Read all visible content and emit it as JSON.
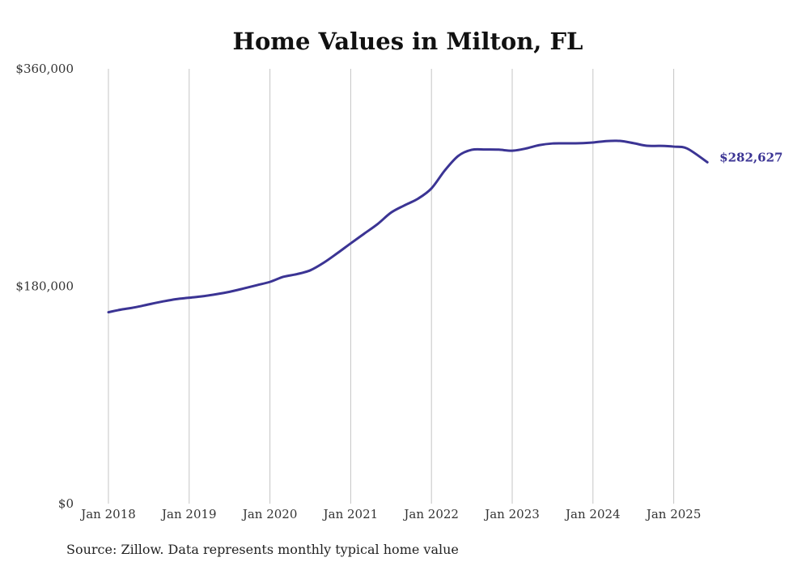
{
  "chart_data": {
    "type": "line",
    "title": "Home Values in Milton, FL",
    "xlabel": "",
    "ylabel": "",
    "ylim": [
      0,
      360000
    ],
    "y_ticks": [
      "$0",
      "$180,000",
      "$360,000"
    ],
    "y_tick_values": [
      0,
      180000,
      360000
    ],
    "x_ticks": [
      "Jan 2018",
      "Jan 2019",
      "Jan 2020",
      "Jan 2021",
      "Jan 2022",
      "Jan 2023",
      "Jan 2024",
      "Jan 2025"
    ],
    "x_tick_values": [
      "2018-01",
      "2019-01",
      "2020-01",
      "2021-01",
      "2022-01",
      "2023-01",
      "2024-01",
      "2025-01"
    ],
    "xlim": [
      "2018-01",
      "2025-06"
    ],
    "grid": "vertical",
    "legend": "none",
    "end_label": "$282,627",
    "color": "#3b3494",
    "series": [
      {
        "x": [
          "2018-01",
          "2018-03",
          "2018-05",
          "2018-07",
          "2018-09",
          "2018-11",
          "2019-01",
          "2019-03",
          "2019-05",
          "2019-07",
          "2019-09",
          "2019-11",
          "2020-01",
          "2020-03",
          "2020-05",
          "2020-07",
          "2020-09",
          "2020-11",
          "2021-01",
          "2021-03",
          "2021-05",
          "2021-07",
          "2021-09",
          "2021-11",
          "2022-01",
          "2022-03",
          "2022-05",
          "2022-07",
          "2022-09",
          "2022-11",
          "2023-01",
          "2023-03",
          "2023-05",
          "2023-07",
          "2023-09",
          "2023-11",
          "2024-01",
          "2024-03",
          "2024-05",
          "2024-07",
          "2024-09",
          "2024-11",
          "2025-01",
          "2025-03",
          "2025-06"
        ],
        "values": [
          158500,
          160800,
          162600,
          165000,
          167300,
          169300,
          170500,
          171700,
          173400,
          175400,
          178000,
          180800,
          183600,
          187800,
          190000,
          193200,
          199500,
          207300,
          215500,
          223500,
          231500,
          241000,
          247000,
          252500,
          261000,
          276000,
          288000,
          293000,
          293200,
          293100,
          292200,
          294000,
          296800,
          298200,
          298300,
          298400,
          299000,
          300200,
          300300,
          298500,
          296300,
          296200,
          295600,
          294000,
          282627
        ]
      }
    ]
  },
  "source": "Source: Zillow. Data represents monthly typical home value"
}
